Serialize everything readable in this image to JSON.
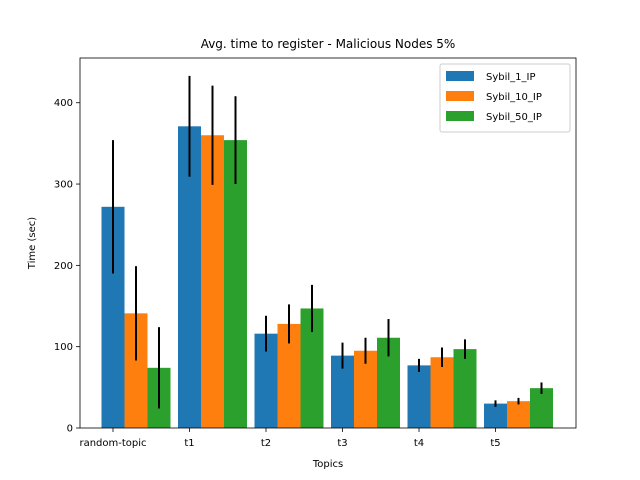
{
  "chart_data": {
    "type": "bar",
    "title": "Avg. time to register - Malicious Nodes 5%",
    "xlabel": "Topics",
    "ylabel": "Time (sec)",
    "categories": [
      "random-topic",
      "t1",
      "t2",
      "t3",
      "t4",
      "t5"
    ],
    "ylim": [
      0,
      455
    ],
    "yticks": [
      0,
      100,
      200,
      300,
      400
    ],
    "grid": false,
    "legend_position": "top-right",
    "series": [
      {
        "name": "Sybil_1_IP",
        "color": "#1f77b4",
        "values": [
          272,
          371,
          116,
          89,
          77,
          30
        ],
        "errors": [
          82,
          62,
          22,
          16,
          8,
          4
        ]
      },
      {
        "name": "Sybil_10_IP",
        "color": "#ff7f0e",
        "values": [
          141,
          360,
          128,
          95,
          87,
          33
        ],
        "errors": [
          58,
          61,
          24,
          16,
          12,
          4
        ]
      },
      {
        "name": "Sybil_50_IP",
        "color": "#2ca02c",
        "values": [
          74,
          354,
          147,
          111,
          97,
          49
        ],
        "errors": [
          50,
          54,
          29,
          23,
          12,
          7
        ]
      }
    ]
  }
}
